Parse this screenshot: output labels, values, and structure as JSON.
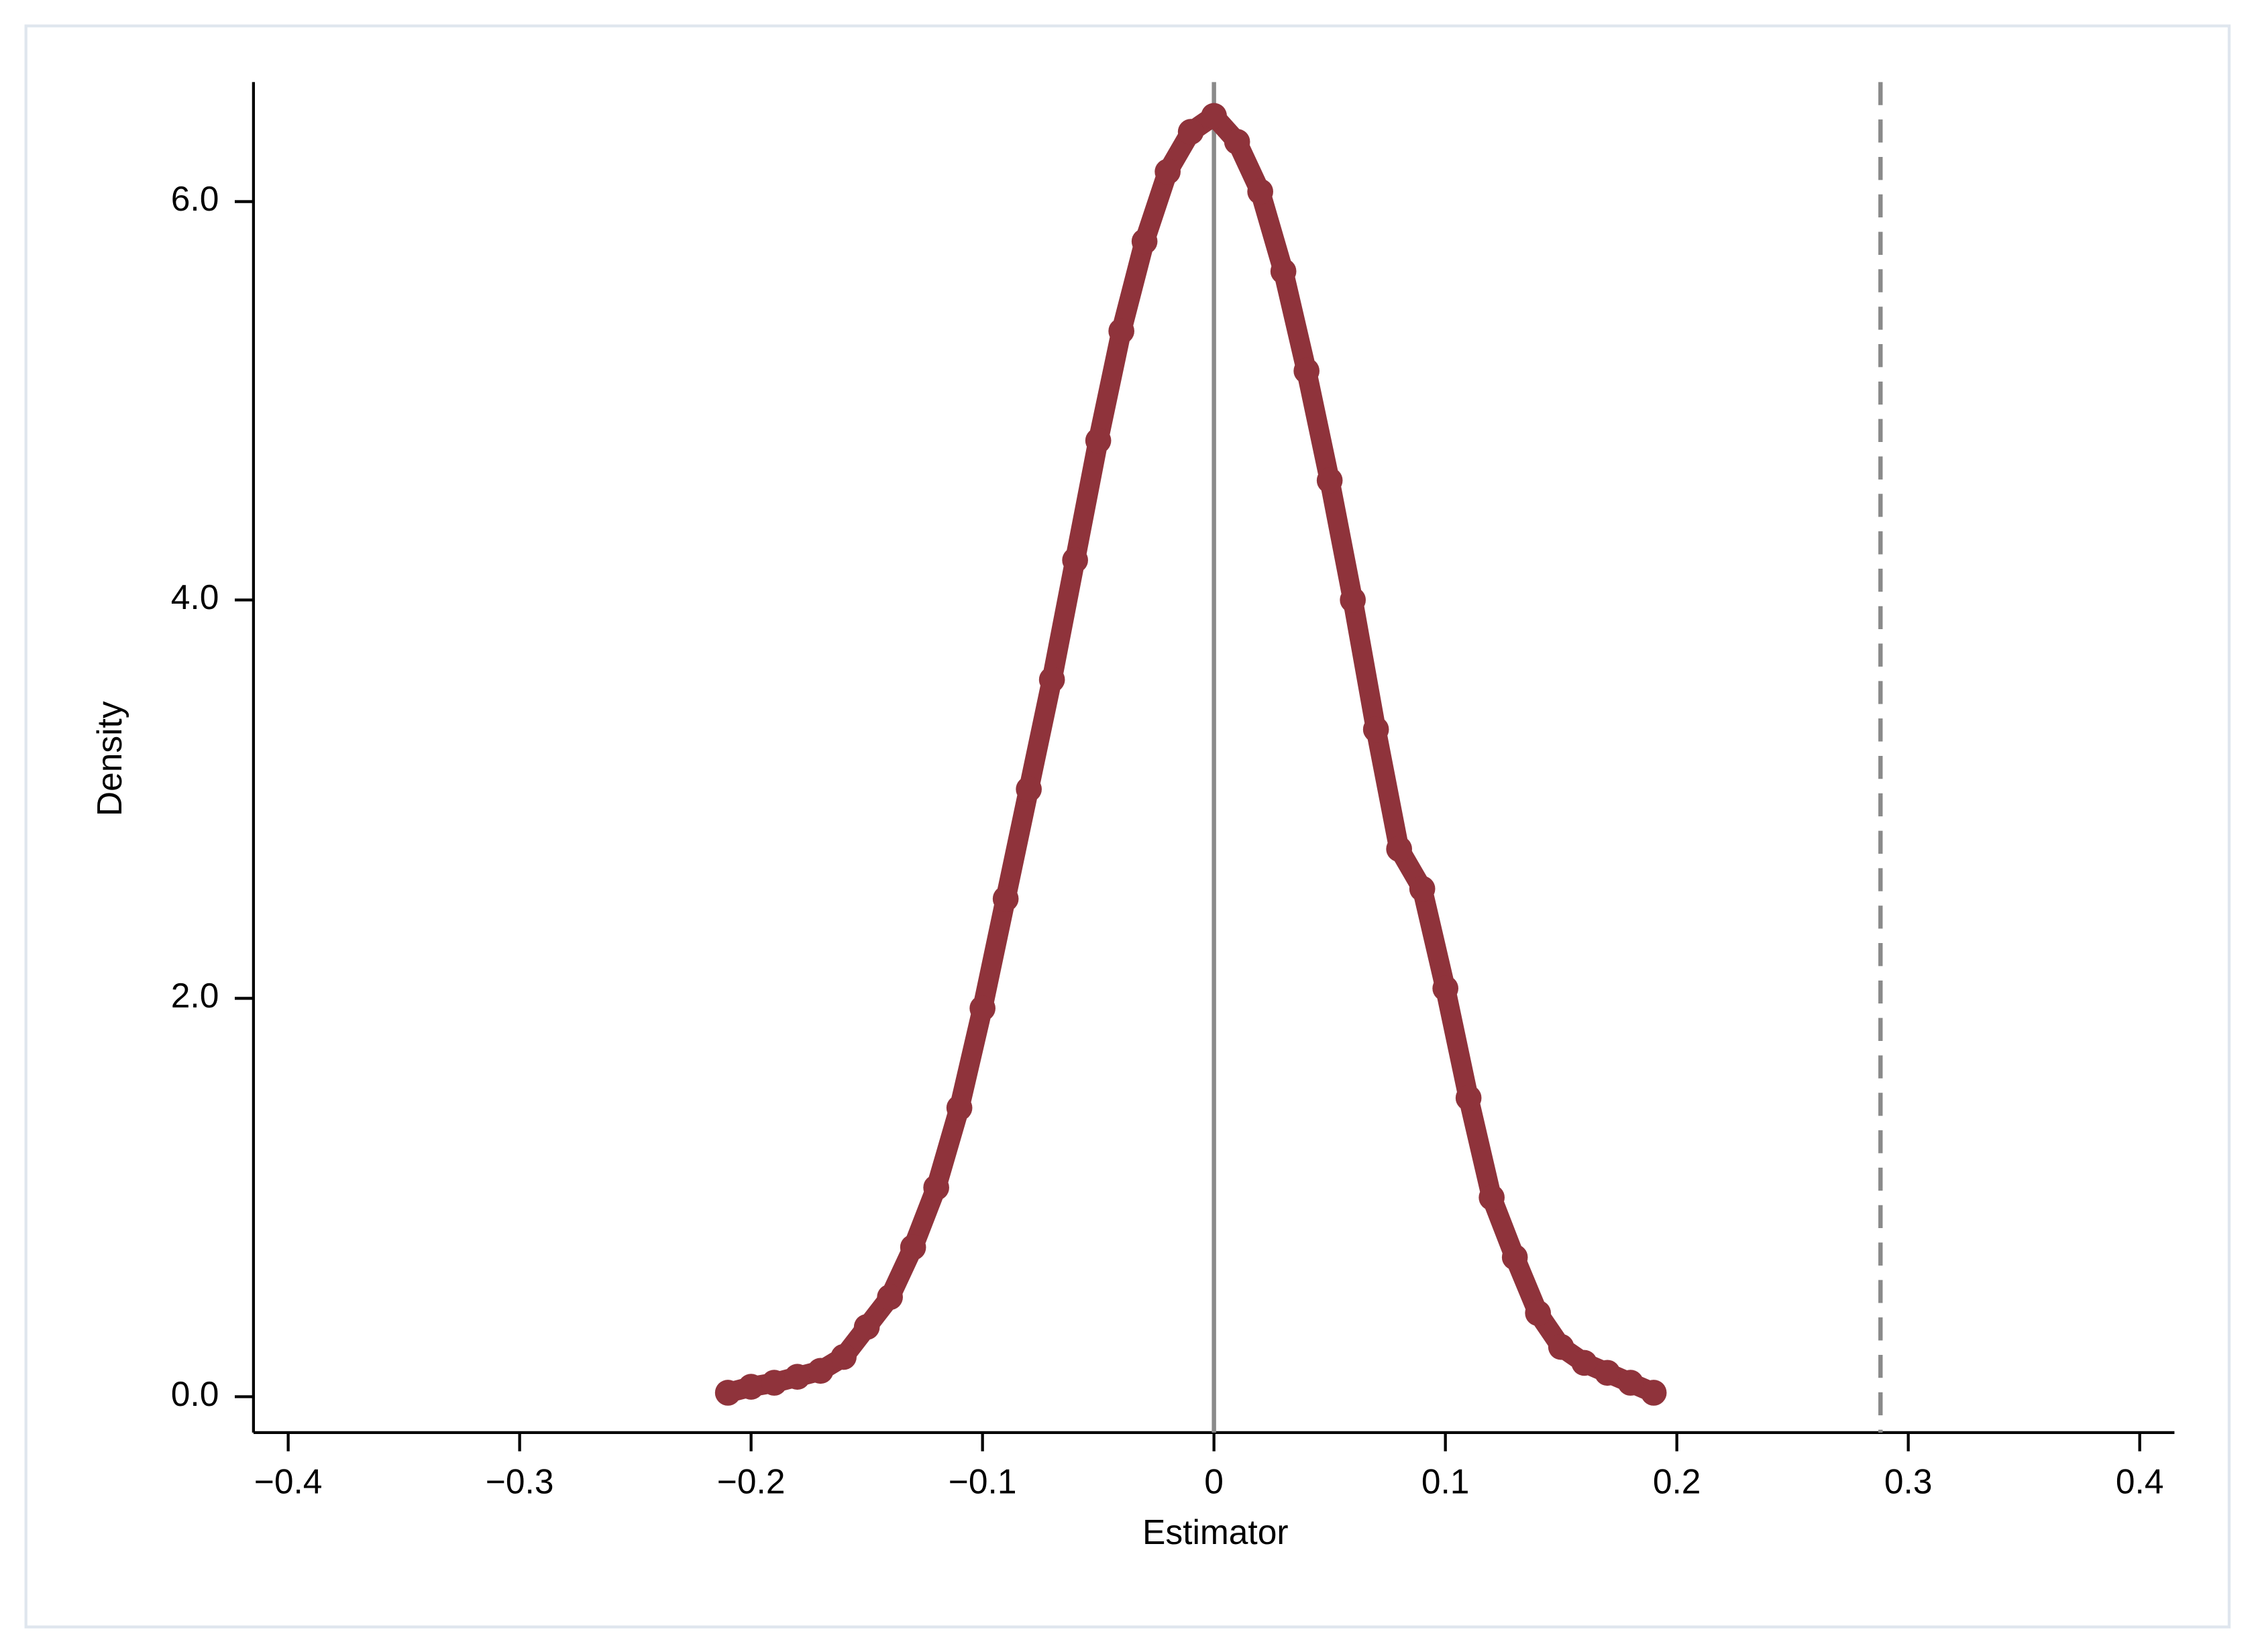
{
  "chart_data": {
    "type": "line",
    "x_label": "Estimator",
    "y_label": "Density",
    "series": [
      {
        "color": "#8f333b",
        "x": [
          -0.21,
          -0.2,
          -0.19,
          -0.18,
          -0.17,
          -0.16,
          -0.15,
          -0.14,
          -0.13,
          -0.12,
          -0.11,
          -0.1,
          -0.09,
          -0.08,
          -0.07,
          -0.06,
          -0.05,
          -0.04,
          -0.03,
          -0.02,
          -0.01,
          0.0,
          0.01,
          0.02,
          0.03,
          0.04,
          0.05,
          0.06,
          0.07,
          0.08,
          0.09,
          0.1,
          0.11,
          0.12,
          0.13,
          0.14,
          0.15,
          0.16,
          0.17,
          0.18,
          0.19
        ],
        "values": [
          0.02,
          0.05,
          0.07,
          0.1,
          0.13,
          0.2,
          0.35,
          0.5,
          0.75,
          1.05,
          1.45,
          1.95,
          2.5,
          3.05,
          3.6,
          4.2,
          4.8,
          5.35,
          5.8,
          6.15,
          6.35,
          6.43,
          6.3,
          6.05,
          5.65,
          5.15,
          4.6,
          4.0,
          3.35,
          2.75,
          2.55,
          2.05,
          1.5,
          1.0,
          0.7,
          0.42,
          0.25,
          0.17,
          0.12,
          0.07,
          0.02
        ]
      }
    ],
    "reference_lines": [
      {
        "x": 0,
        "style": "solid",
        "color": "#8a8a8a"
      },
      {
        "x": 0.288,
        "style": "dashed",
        "color": "#8a8a8a"
      }
    ],
    "xlim": [
      -0.415,
      0.415
    ],
    "ylim": [
      -0.18,
      6.6
    ],
    "xticks": [
      {
        "value": -0.4,
        "label": "−0.4"
      },
      {
        "value": -0.3,
        "label": "−0.3"
      },
      {
        "value": -0.2,
        "label": "−0.2"
      },
      {
        "value": -0.1,
        "label": "−0.1"
      },
      0,
      0.1,
      0.2,
      0.3,
      0.4
    ],
    "yticks": [
      {
        "value": 0,
        "label": "0.0"
      },
      {
        "value": 2,
        "label": "2.0"
      },
      {
        "value": 4,
        "label": "4.0"
      },
      {
        "value": 6,
        "label": "6.0"
      }
    ],
    "grid": false
  }
}
